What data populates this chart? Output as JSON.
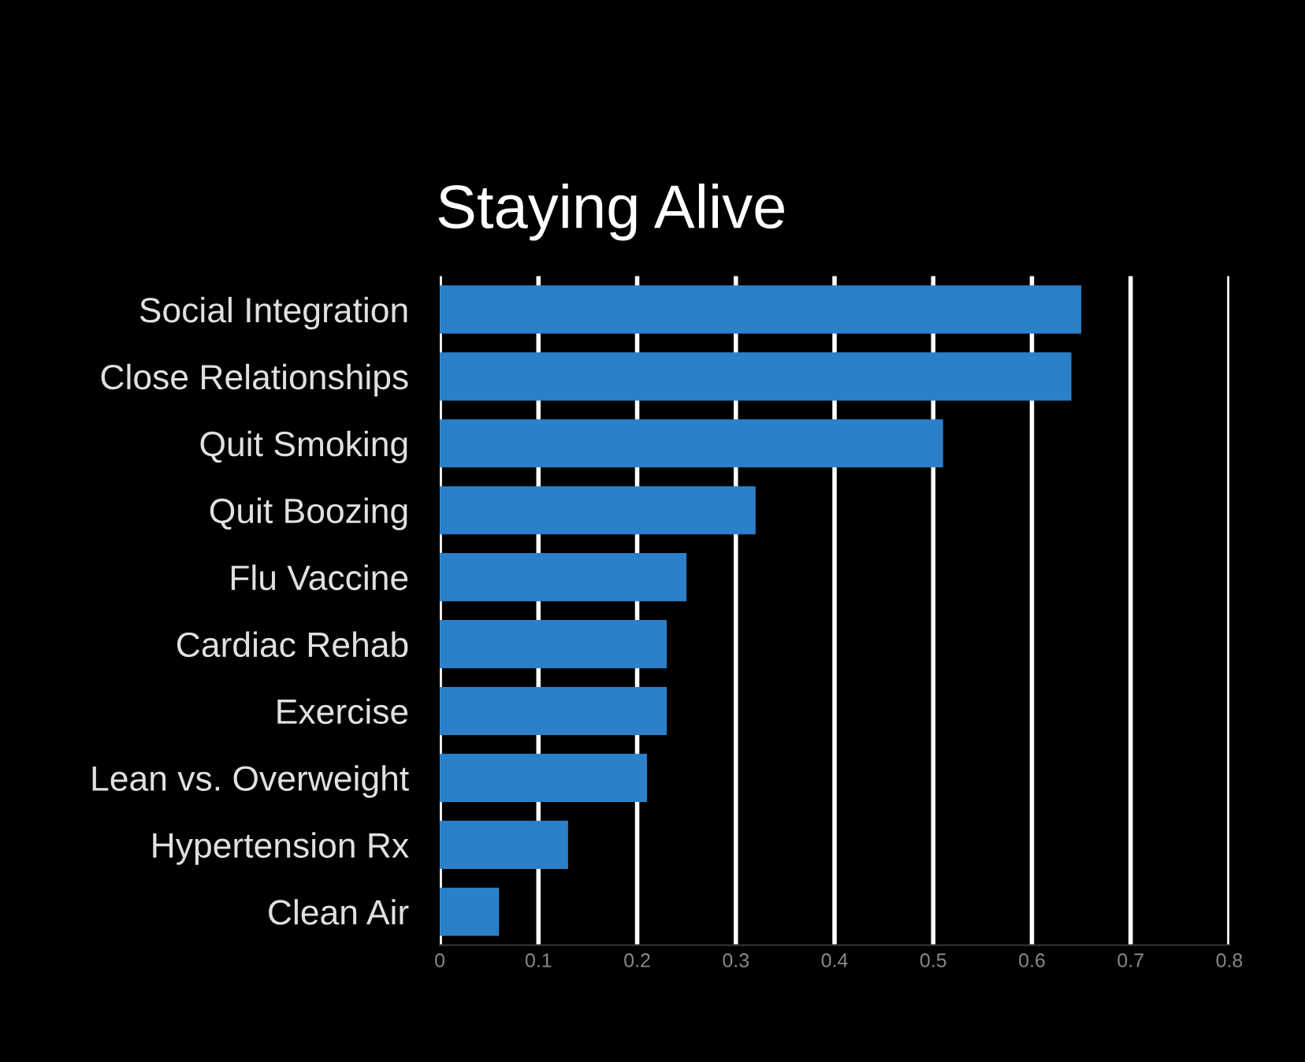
{
  "chart_data": {
    "type": "bar",
    "orientation": "horizontal",
    "title": "Staying Alive",
    "categories": [
      "Social Integration",
      "Close Relationships",
      "Quit Smoking",
      "Quit Boozing",
      "Flu Vaccine",
      "Cardiac Rehab",
      "Exercise",
      "Lean vs. Overweight",
      "Hypertension Rx",
      "Clean Air"
    ],
    "values": [
      0.65,
      0.64,
      0.51,
      0.32,
      0.25,
      0.23,
      0.23,
      0.21,
      0.13,
      0.06
    ],
    "color": "#2b80c9",
    "xlim": [
      0,
      0.8
    ],
    "xticks": [
      0,
      0.1,
      0.2,
      0.3,
      0.4,
      0.5,
      0.6,
      0.7,
      0.8
    ],
    "grid": "x"
  }
}
